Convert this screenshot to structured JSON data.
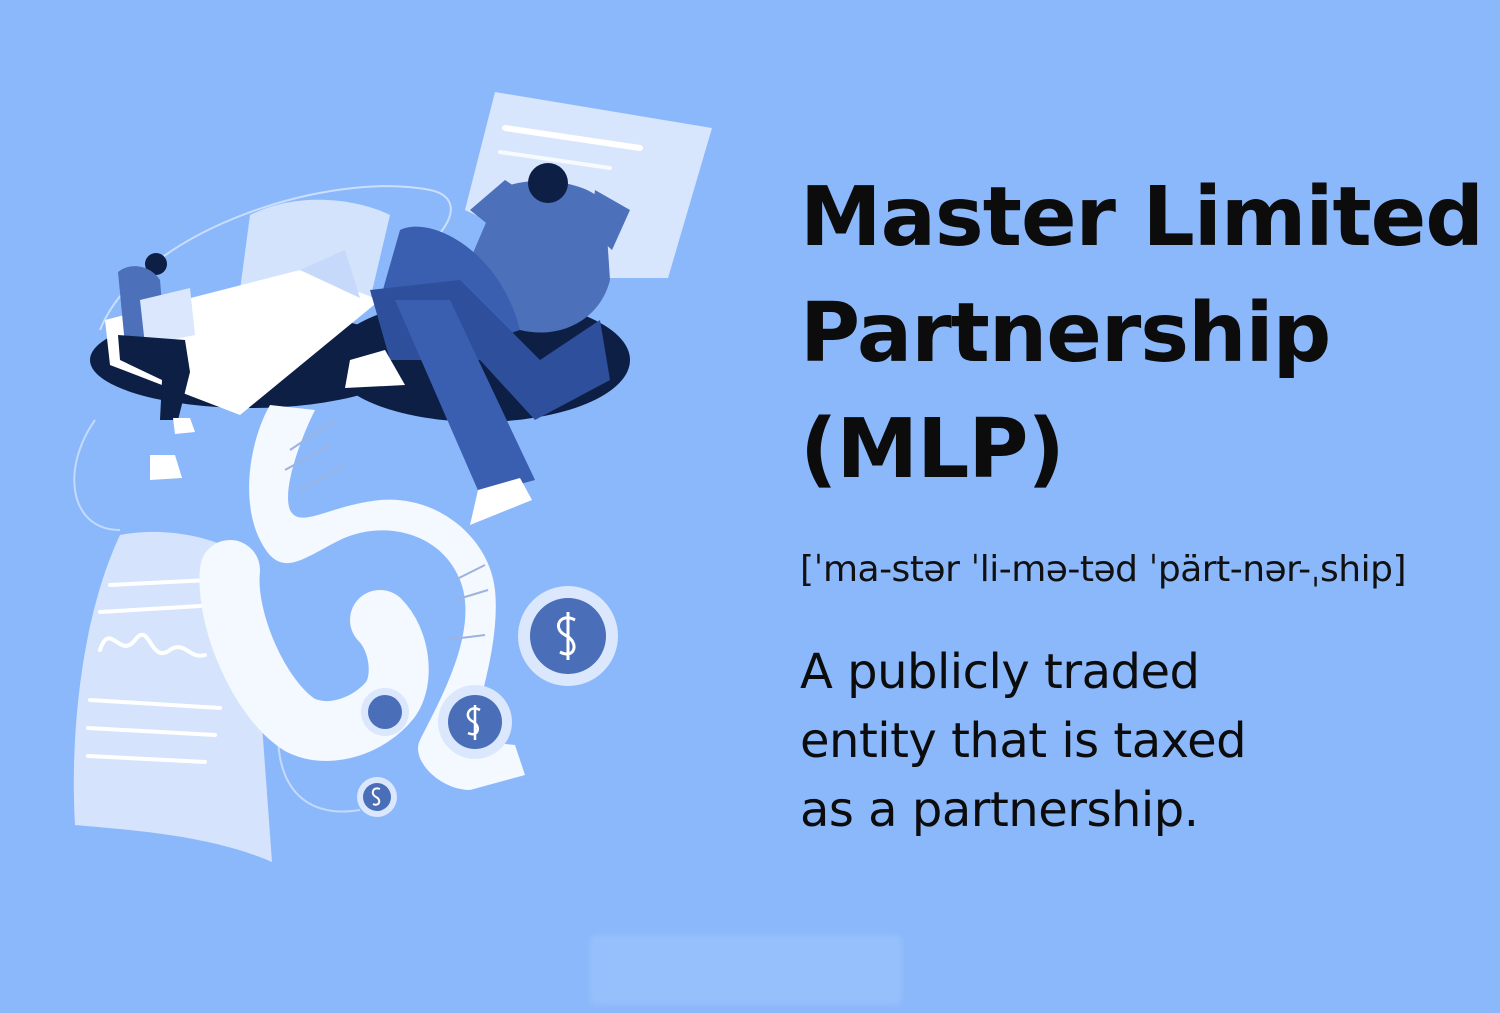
{
  "term": {
    "title_lines": [
      "Master Limited",
      "Partnership",
      "(MLP)"
    ],
    "pronunciation": "[ˈma-stər ˈli-mə-təd ˈpärt-nər-ˌship]",
    "definition_lines": [
      "A publicly traded",
      "entity that is taxed",
      "as a partnership."
    ]
  },
  "colors": {
    "background": "#8bb8fb",
    "paper_light": "#c9dcfb",
    "paper_white": "#ffffff",
    "figure_blue": "#3f63b0",
    "figure_dark": "#0f2148",
    "coin_blue": "#4a6fb8"
  },
  "illustration": {
    "icons": [
      "document-icon",
      "receipt-scroll-icon",
      "dollar-coin-icon",
      "person-figure-icon"
    ]
  }
}
